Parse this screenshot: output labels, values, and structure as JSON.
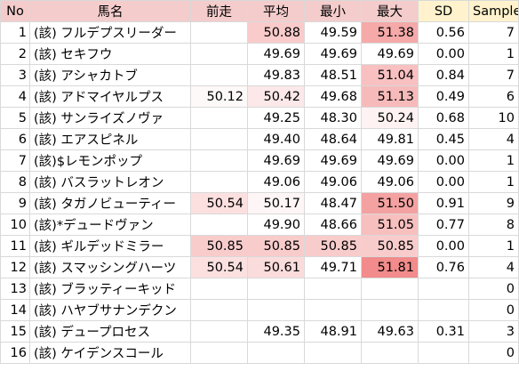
{
  "headers": {
    "no": "No",
    "name": "馬名",
    "prev": "前走",
    "avg": "平均",
    "min": "最小",
    "max": "最大",
    "sd": "SD",
    "sample": "Sample"
  },
  "colors": {
    "header_pink": "#f4cccc",
    "header_yellow": "#fff2cc",
    "scale_low": "#ffffff",
    "scale_high": "#f28b8b"
  },
  "rows": [
    {
      "no": "1",
      "name": "(該) フルデプスリーダー",
      "prev": "",
      "avg": "50.88",
      "min": "49.59",
      "max": "51.38",
      "sd": "0.56",
      "sample": "7"
    },
    {
      "no": "2",
      "name": "(該) セキフウ",
      "prev": "",
      "avg": "49.69",
      "min": "49.69",
      "max": "49.69",
      "sd": "0.00",
      "sample": "1"
    },
    {
      "no": "3",
      "name": "(該) アシャカトブ",
      "prev": "",
      "avg": "49.83",
      "min": "48.51",
      "max": "51.04",
      "sd": "0.84",
      "sample": "7"
    },
    {
      "no": "4",
      "name": "(該) アドマイヤルプス",
      "prev": "50.12",
      "avg": "50.42",
      "min": "49.68",
      "max": "51.13",
      "sd": "0.49",
      "sample": "6"
    },
    {
      "no": "5",
      "name": "(該) サンライズノヴァ",
      "prev": "",
      "avg": "49.25",
      "min": "48.30",
      "max": "50.24",
      "sd": "0.68",
      "sample": "10"
    },
    {
      "no": "6",
      "name": "(該) エアスピネル",
      "prev": "",
      "avg": "49.40",
      "min": "48.64",
      "max": "49.81",
      "sd": "0.45",
      "sample": "4"
    },
    {
      "no": "7",
      "name": "(該)$レモンポップ",
      "prev": "",
      "avg": "49.69",
      "min": "49.69",
      "max": "49.69",
      "sd": "0.00",
      "sample": "1"
    },
    {
      "no": "8",
      "name": "(該) バスラットレオン",
      "prev": "",
      "avg": "49.06",
      "min": "49.06",
      "max": "49.06",
      "sd": "0.00",
      "sample": "1"
    },
    {
      "no": "9",
      "name": "(該) タガノビューティー",
      "prev": "50.54",
      "avg": "50.17",
      "min": "48.47",
      "max": "51.50",
      "sd": "0.91",
      "sample": "9"
    },
    {
      "no": "10",
      "name": "(該)*デュードヴァン",
      "prev": "",
      "avg": "49.90",
      "min": "48.66",
      "max": "51.05",
      "sd": "0.77",
      "sample": "8"
    },
    {
      "no": "11",
      "name": "(該) ギルデッドミラー",
      "prev": "50.85",
      "avg": "50.85",
      "min": "50.85",
      "max": "50.85",
      "sd": "0.00",
      "sample": "1"
    },
    {
      "no": "12",
      "name": "(該) スマッシングハーツ",
      "prev": "50.54",
      "avg": "50.61",
      "min": "49.71",
      "max": "51.81",
      "sd": "0.76",
      "sample": "4"
    },
    {
      "no": "13",
      "name": "(該) ブラッティーキッド",
      "prev": "",
      "avg": "",
      "min": "",
      "max": "",
      "sd": "",
      "sample": "0"
    },
    {
      "no": "14",
      "name": "(該) ハヤブサナンデクン",
      "prev": "",
      "avg": "",
      "min": "",
      "max": "",
      "sd": "",
      "sample": "0"
    },
    {
      "no": "15",
      "name": "(該) デュープロセス",
      "prev": "",
      "avg": "49.35",
      "min": "48.91",
      "max": "49.63",
      "sd": "0.31",
      "sample": "3"
    },
    {
      "no": "16",
      "name": "(該) ケイデンスコール",
      "prev": "",
      "avg": "",
      "min": "",
      "max": "",
      "sd": "",
      "sample": "0"
    }
  ]
}
